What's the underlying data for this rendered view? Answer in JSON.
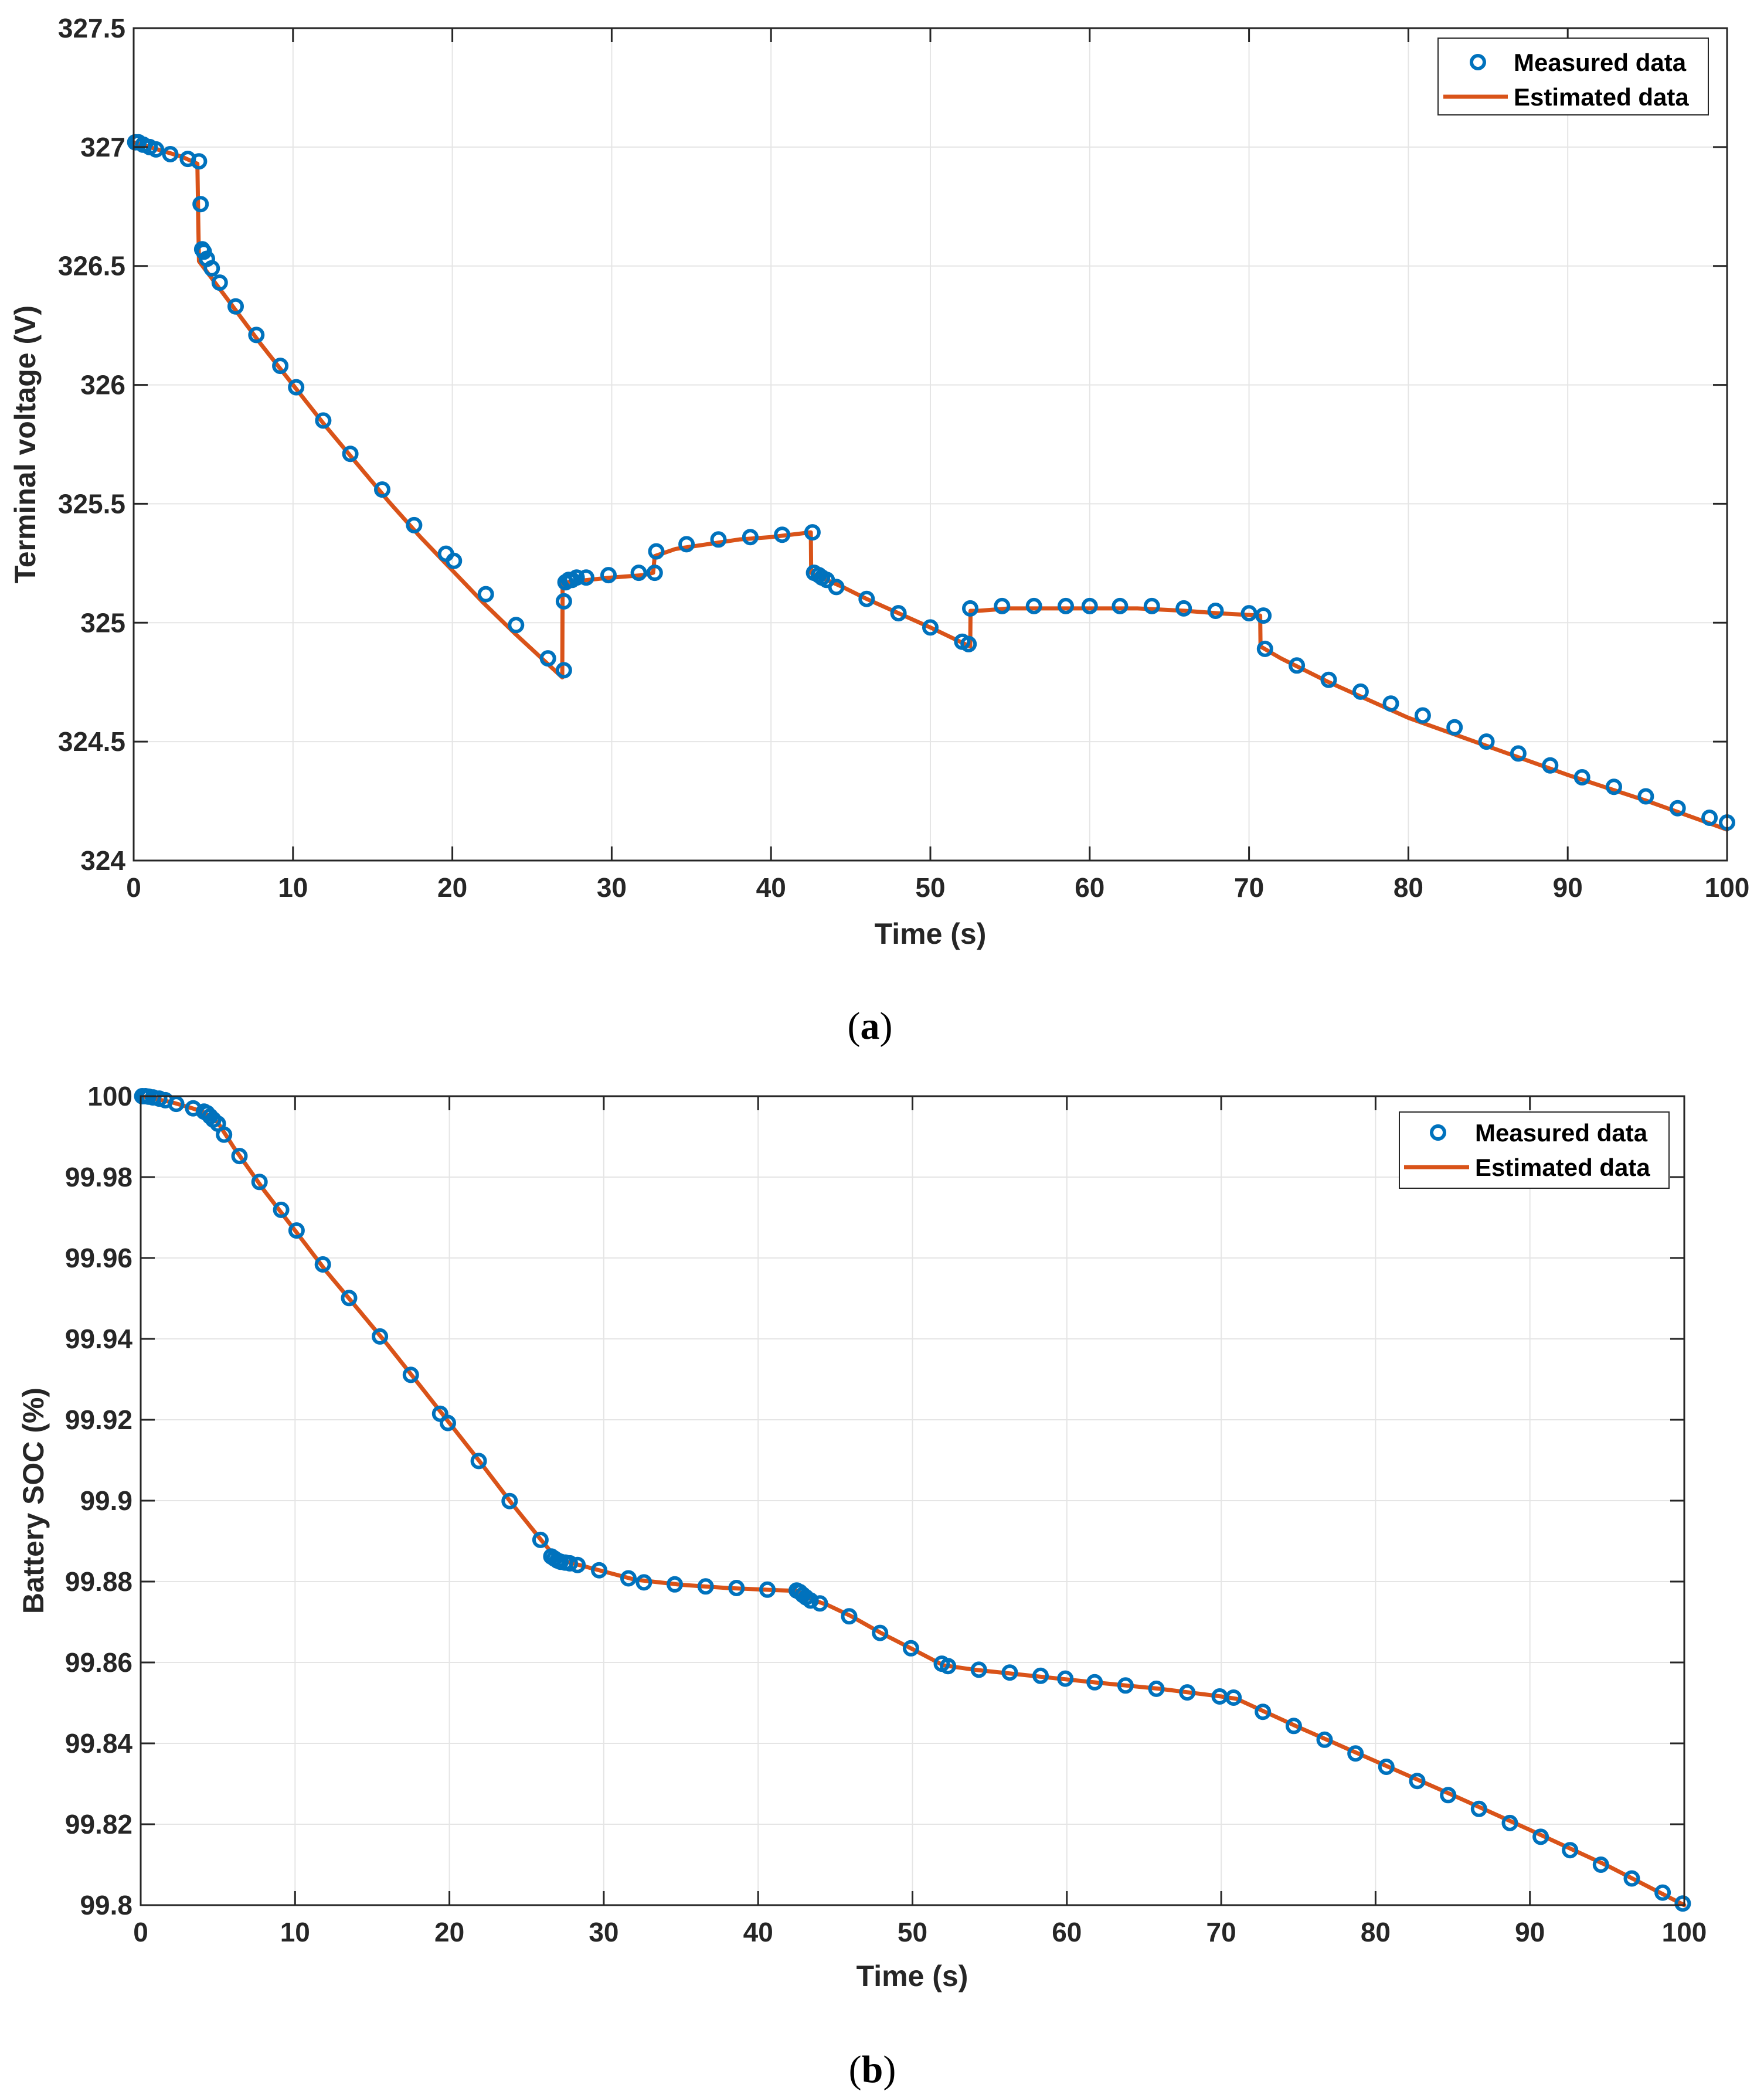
{
  "colors": {
    "measured": "#0072BD",
    "estimated": "#D95319",
    "grid": "#E5E5E5",
    "axes": "#262626"
  },
  "chart_data": [
    {
      "type": "line",
      "caption": "a",
      "xlabel": "Time (s)",
      "ylabel": "Terminal voltage (V)",
      "xlim": [
        0,
        100
      ],
      "ylim": [
        324,
        327.5
      ],
      "xticks": [
        "0",
        "10",
        "20",
        "30",
        "40",
        "50",
        "60",
        "70",
        "80",
        "90",
        "100"
      ],
      "yticks": [
        "324",
        "324.5",
        "325",
        "325.5",
        "326",
        "326.5",
        "327",
        "327.5"
      ],
      "grid": true,
      "legend": {
        "position": "top-right",
        "entries": [
          "Measured data",
          "Estimated data"
        ]
      },
      "series": [
        {
          "name": "Measured data",
          "marker": "circle",
          "x": [
            0.1,
            0.3,
            0.6,
            1.0,
            1.4,
            2.3,
            3.4,
            4.1,
            4.2,
            4.3,
            4.4,
            4.6,
            4.9,
            5.4,
            6.4,
            7.7,
            9.2,
            10.2,
            11.9,
            13.6,
            15.6,
            17.6,
            19.6,
            20.1,
            22.1,
            24.0,
            26.0,
            27.0,
            27.0,
            27.1,
            27.3,
            27.5,
            27.8,
            28.4,
            29.8,
            31.7,
            32.7,
            32.8,
            34.7,
            36.7,
            38.7,
            40.7,
            42.6,
            42.7,
            43.0,
            43.2,
            43.5,
            44.1,
            46.0,
            48.0,
            50.0,
            52.0,
            52.4,
            52.5,
            54.5,
            56.5,
            58.5,
            60.0,
            61.9,
            63.9,
            65.9,
            67.9,
            70.0,
            70.9,
            71.0,
            73.0,
            75.0,
            77.0,
            78.9,
            80.9,
            82.9,
            84.9,
            86.9,
            88.9,
            90.9,
            92.9,
            94.9,
            96.9,
            98.9,
            100.0
          ],
          "y": [
            327.02,
            327.02,
            327.01,
            327.0,
            326.99,
            326.97,
            326.95,
            326.94,
            326.76,
            326.57,
            326.56,
            326.53,
            326.49,
            326.43,
            326.33,
            326.21,
            326.08,
            325.99,
            325.85,
            325.71,
            325.56,
            325.41,
            325.29,
            325.26,
            325.12,
            324.99,
            324.85,
            324.8,
            325.09,
            325.17,
            325.18,
            325.18,
            325.19,
            325.19,
            325.2,
            325.21,
            325.21,
            325.3,
            325.33,
            325.35,
            325.36,
            325.37,
            325.38,
            325.21,
            325.2,
            325.19,
            325.18,
            325.15,
            325.1,
            325.04,
            324.98,
            324.92,
            324.91,
            325.06,
            325.07,
            325.07,
            325.07,
            325.07,
            325.07,
            325.07,
            325.06,
            325.05,
            325.04,
            325.03,
            324.89,
            324.82,
            324.76,
            324.71,
            324.66,
            324.61,
            324.56,
            324.5,
            324.45,
            324.4,
            324.35,
            324.31,
            324.27,
            324.22,
            324.18,
            324.16
          ]
        },
        {
          "name": "Estimated data",
          "marker": "line",
          "x": [
            0,
            1,
            2,
            3,
            4.0,
            4.05,
            4.1,
            6,
            8,
            10,
            12,
            14,
            16,
            18,
            20,
            22,
            24,
            26.9,
            26.92,
            27.2,
            28.5,
            30,
            32,
            32.6,
            32.7,
            34,
            36,
            38,
            40,
            42.5,
            42.52,
            42.7,
            43.5,
            44.5,
            46,
            48,
            50,
            52.5,
            52.52,
            53,
            55,
            57,
            60,
            63,
            66,
            68,
            70.7,
            70.72,
            72,
            75,
            80,
            85,
            90,
            95,
            100
          ],
          "y": [
            327.02,
            327.0,
            326.98,
            326.96,
            326.93,
            326.7,
            326.52,
            326.35,
            326.17,
            326.0,
            325.83,
            325.67,
            325.51,
            325.36,
            325.22,
            325.08,
            324.95,
            324.77,
            325.17,
            325.17,
            325.18,
            325.19,
            325.2,
            325.21,
            325.28,
            325.31,
            325.33,
            325.35,
            325.36,
            325.38,
            325.21,
            325.2,
            325.18,
            325.15,
            325.1,
            325.04,
            324.98,
            324.9,
            325.05,
            325.05,
            325.06,
            325.06,
            325.06,
            325.06,
            325.05,
            325.04,
            325.03,
            324.9,
            324.85,
            324.75,
            324.6,
            324.48,
            324.36,
            324.25,
            324.13
          ]
        }
      ]
    },
    {
      "type": "line",
      "caption": "b",
      "xlabel": "Time (s)",
      "ylabel": "Battery SOC (%)",
      "xlim": [
        0,
        100
      ],
      "ylim": [
        99.8,
        100
      ],
      "xticks": [
        "0",
        "10",
        "20",
        "30",
        "40",
        "50",
        "60",
        "70",
        "80",
        "90",
        "100"
      ],
      "yticks": [
        "99.8",
        "99.82",
        "99.84",
        "99.86",
        "99.88",
        "99.9",
        "99.92",
        "99.94",
        "99.96",
        "99.98",
        "100"
      ],
      "grid": true,
      "legend": {
        "position": "top-right",
        "entries": [
          "Measured data",
          "Estimated data"
        ]
      },
      "series": [
        {
          "name": "Measured data",
          "marker": "circle",
          "x": [
            0.1,
            0.3,
            0.5,
            0.8,
            1.2,
            1.6,
            2.3,
            3.4,
            4.1,
            4.3,
            4.5,
            4.7,
            5.0,
            5.4,
            6.4,
            7.7,
            9.1,
            10.1,
            11.8,
            13.5,
            15.5,
            17.5,
            19.4,
            19.9,
            21.9,
            23.9,
            25.9,
            26.6,
            26.8,
            27.0,
            27.2,
            27.5,
            27.8,
            28.3,
            29.7,
            31.6,
            32.6,
            34.6,
            36.6,
            38.6,
            40.6,
            42.5,
            42.7,
            42.9,
            43.1,
            43.4,
            44.0,
            45.9,
            47.9,
            49.9,
            51.9,
            52.3,
            54.3,
            56.3,
            58.3,
            59.9,
            61.8,
            63.8,
            65.8,
            67.8,
            69.9,
            70.8,
            72.7,
            74.7,
            76.7,
            78.7,
            80.7,
            82.7,
            84.7,
            86.7,
            88.7,
            90.7,
            92.6,
            94.6,
            96.6,
            98.6,
            99.9
          ],
          "y": [
            100.0,
            100.0,
            99.9999,
            99.9997,
            99.9994,
            99.999,
            99.9981,
            99.997,
            99.9962,
            99.9958,
            99.995,
            99.9942,
            99.9932,
            99.9905,
            99.9852,
            99.9788,
            99.9719,
            99.9668,
            99.9584,
            99.9501,
            99.9406,
            99.9311,
            99.9215,
            99.9192,
            99.9098,
            99.8999,
            99.8903,
            99.8862,
            99.8857,
            99.8852,
            99.8849,
            99.8847,
            99.8845,
            99.8841,
            99.8828,
            99.8808,
            99.8798,
            99.8793,
            99.8788,
            99.8784,
            99.878,
            99.8778,
            99.8774,
            99.8767,
            99.8761,
            99.8753,
            99.8746,
            99.8714,
            99.8673,
            99.8635,
            99.8597,
            99.8591,
            99.8582,
            99.8575,
            99.8567,
            99.856,
            99.8551,
            99.8543,
            99.8535,
            99.8526,
            99.8516,
            99.8513,
            99.8478,
            99.8443,
            99.8409,
            99.8375,
            99.8342,
            99.8307,
            99.8272,
            99.8238,
            99.8203,
            99.8169,
            99.8136,
            99.81,
            99.8066,
            99.8031,
            99.8004
          ]
        },
        {
          "name": "Estimated data",
          "marker": "line",
          "x": [
            0,
            1,
            2,
            3,
            4,
            5,
            6,
            8,
            10,
            12,
            14,
            16,
            18,
            20,
            22,
            24,
            26,
            27,
            28,
            30,
            32,
            35,
            38,
            41,
            42.5,
            43.5,
            44.5,
            46,
            48,
            50,
            52,
            54,
            58,
            62,
            66,
            70,
            71,
            75,
            80,
            85,
            90,
            95,
            100
          ],
          "y": [
            100.0,
            99.9993,
            99.9985,
            99.9974,
            99.9962,
            99.9935,
            99.9875,
            99.9767,
            99.9668,
            99.9568,
            99.9477,
            99.9385,
            99.9289,
            99.9192,
            99.9095,
            99.8995,
            99.89,
            99.8855,
            99.8845,
            99.8825,
            99.8805,
            99.8792,
            99.8784,
            99.8779,
            99.8777,
            99.8755,
            99.8742,
            99.8715,
            99.8672,
            99.8633,
            99.8593,
            99.8582,
            99.8566,
            99.855,
            99.8535,
            99.8516,
            99.851,
            99.844,
            99.8356,
            99.8272,
            99.8186,
            99.8098,
            99.8
          ]
        }
      ]
    }
  ]
}
